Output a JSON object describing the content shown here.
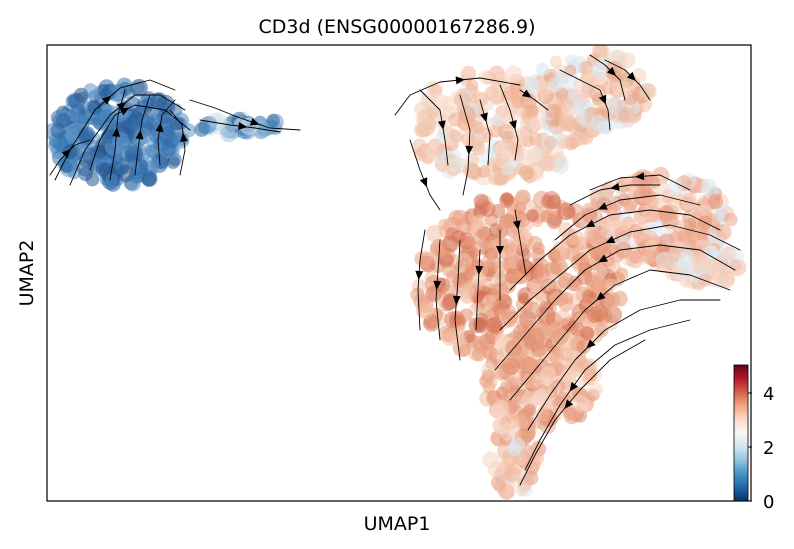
{
  "chart_data": {
    "type": "scatter",
    "title": "CD3d (ENSG00000167286.9)",
    "xlabel": "UMAP1",
    "ylabel": "UMAP2",
    "axis_ticks_shown": false,
    "overlay": "velocity streamlines with arrowheads (black)",
    "colormap": "RdBu_r",
    "colorbar": {
      "range": [
        0,
        5
      ],
      "ticks": [
        "0",
        "2",
        "4"
      ],
      "colors": [
        "#053061",
        "#2166ac",
        "#4393c3",
        "#92c5de",
        "#d1e5f0",
        "#f7f7f7",
        "#fddbc7",
        "#f4a582",
        "#d6604d",
        "#b2182b",
        "#67001f"
      ]
    },
    "clusters": [
      {
        "id": "upper-left",
        "expression_level": "low (~0-1)",
        "dominant_color": "#2f6aa8"
      },
      {
        "id": "left-tail",
        "expression_level": "low to mid (~1-3)",
        "dominant_color": "#4a7fb5"
      },
      {
        "id": "upper-middle",
        "expression_level": "mid (~2-3)",
        "dominant_color": "#efbfa4"
      },
      {
        "id": "main-body",
        "expression_level": "mid-high (~3-4)",
        "dominant_color": "#e2906f"
      }
    ]
  }
}
